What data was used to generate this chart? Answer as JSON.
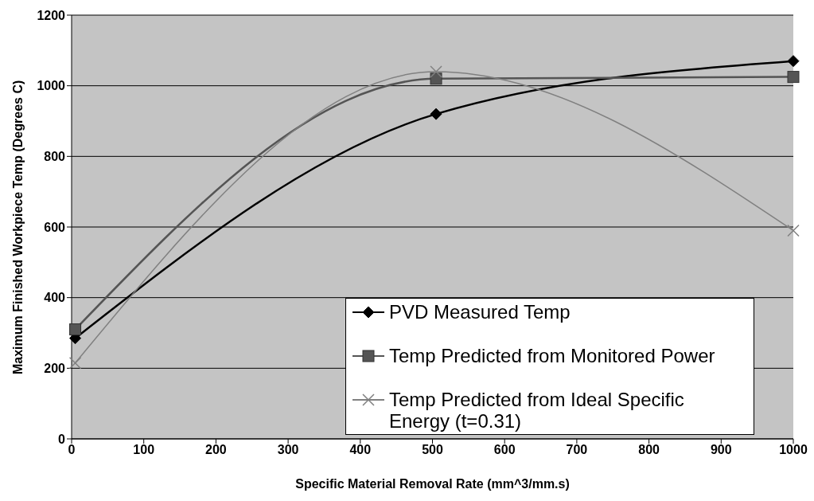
{
  "chart_data": {
    "type": "line",
    "xlabel": "Specific Material Removal Rate (mm^3/mm.s)",
    "ylabel": "Maximum Finished Workpiece Temp (Degrees C)",
    "x": [
      5,
      505,
      1000
    ],
    "series": [
      {
        "name": "PVD Measured Temp",
        "color": "#000000",
        "marker": "diamond",
        "values": [
          285,
          920,
          1070
        ]
      },
      {
        "name": "Temp Predicted from Monitored Power",
        "color": "#555555",
        "marker": "square",
        "values": [
          310,
          1020,
          1025
        ]
      },
      {
        "name": "Temp Predicted from Ideal Specific Energy (t=0.31)",
        "color": "#808080",
        "marker": "cross",
        "values": [
          215,
          1040,
          590
        ]
      }
    ],
    "xlim": [
      0,
      1000
    ],
    "xticks": [
      0,
      100,
      200,
      300,
      400,
      500,
      600,
      700,
      800,
      900,
      1000
    ],
    "ylim": [
      0,
      1200
    ],
    "yticks": [
      0,
      200,
      400,
      600,
      800,
      1000,
      1200
    ],
    "grid": "y",
    "legend": "bottom right"
  }
}
